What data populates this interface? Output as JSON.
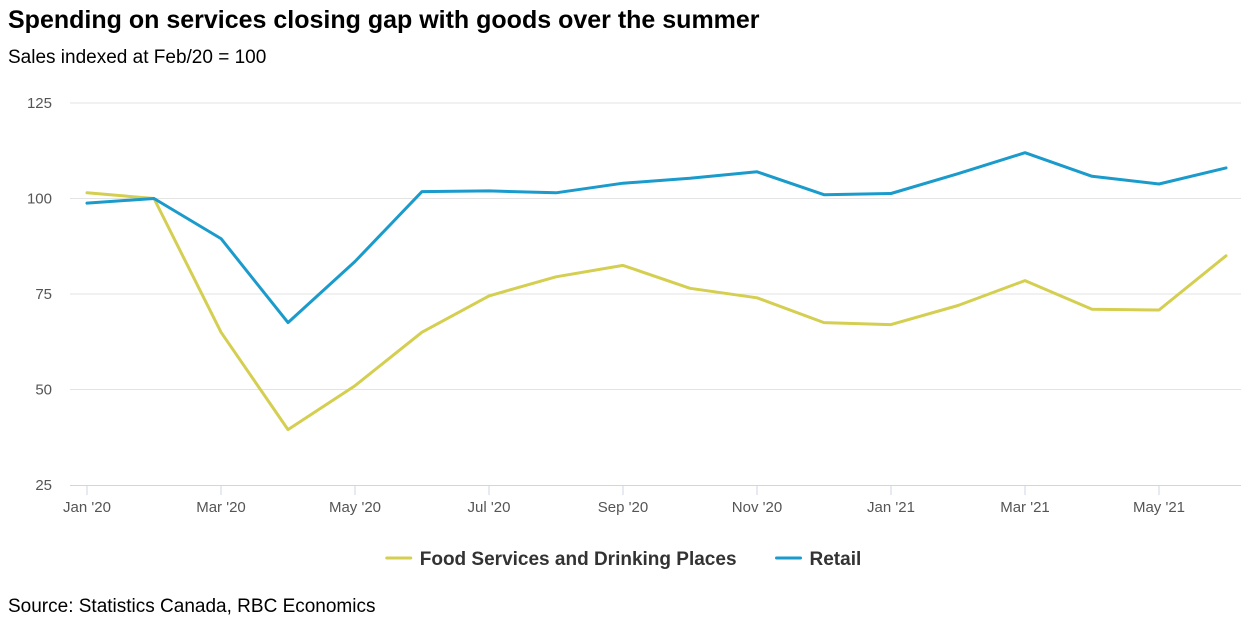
{
  "title": "Spending on services closing gap with goods over the summer",
  "subtitle": "Sales indexed at Feb/20 = 100",
  "source": "Source: Statistics Canada, RBC Economics",
  "chart_data": {
    "type": "line",
    "title": "Spending on services closing gap with goods over the summer",
    "subtitle": "Sales indexed at Feb/20 = 100",
    "x": [
      "Jan 2020",
      "Feb 2020",
      "Mar 2020",
      "Apr 2020",
      "May 2020",
      "Jun 2020",
      "Jul 2020",
      "Aug 2020",
      "Sep 2020",
      "Oct 2020",
      "Nov 2020",
      "Dec 2020",
      "Jan 2021",
      "Feb 2021",
      "Mar 2021",
      "Apr 2021",
      "May 2021",
      "Jun 2021"
    ],
    "xtick_labels": [
      "Jan '20",
      "Mar '20",
      "May '20",
      "Jul '20",
      "Sep '20",
      "Nov '20",
      "Jan '21",
      "Mar '21",
      "May '21"
    ],
    "xtick_index": [
      0,
      2,
      4,
      6,
      8,
      10,
      12,
      14,
      16
    ],
    "yticks": [
      25,
      50,
      75,
      100,
      125
    ],
    "ylim": [
      25,
      125
    ],
    "xlabel": "",
    "ylabel": "",
    "grid": true,
    "legend_position": "bottom",
    "series": [
      {
        "name": "Food Services and Drinking Places",
        "color": "#d4cf50",
        "values": [
          101.5,
          100,
          65,
          39.5,
          51,
          65,
          74.5,
          79.5,
          82.5,
          76.5,
          74,
          67.5,
          67,
          72,
          78.5,
          71,
          70.8,
          85
        ]
      },
      {
        "name": "Retail",
        "color": "#1a9bcc",
        "values": [
          98.8,
          100,
          89.5,
          67.5,
          83.5,
          101.8,
          102,
          101.5,
          104,
          105.3,
          107,
          101,
          101.3,
          106.5,
          112,
          105.8,
          103.8,
          108
        ]
      }
    ]
  }
}
